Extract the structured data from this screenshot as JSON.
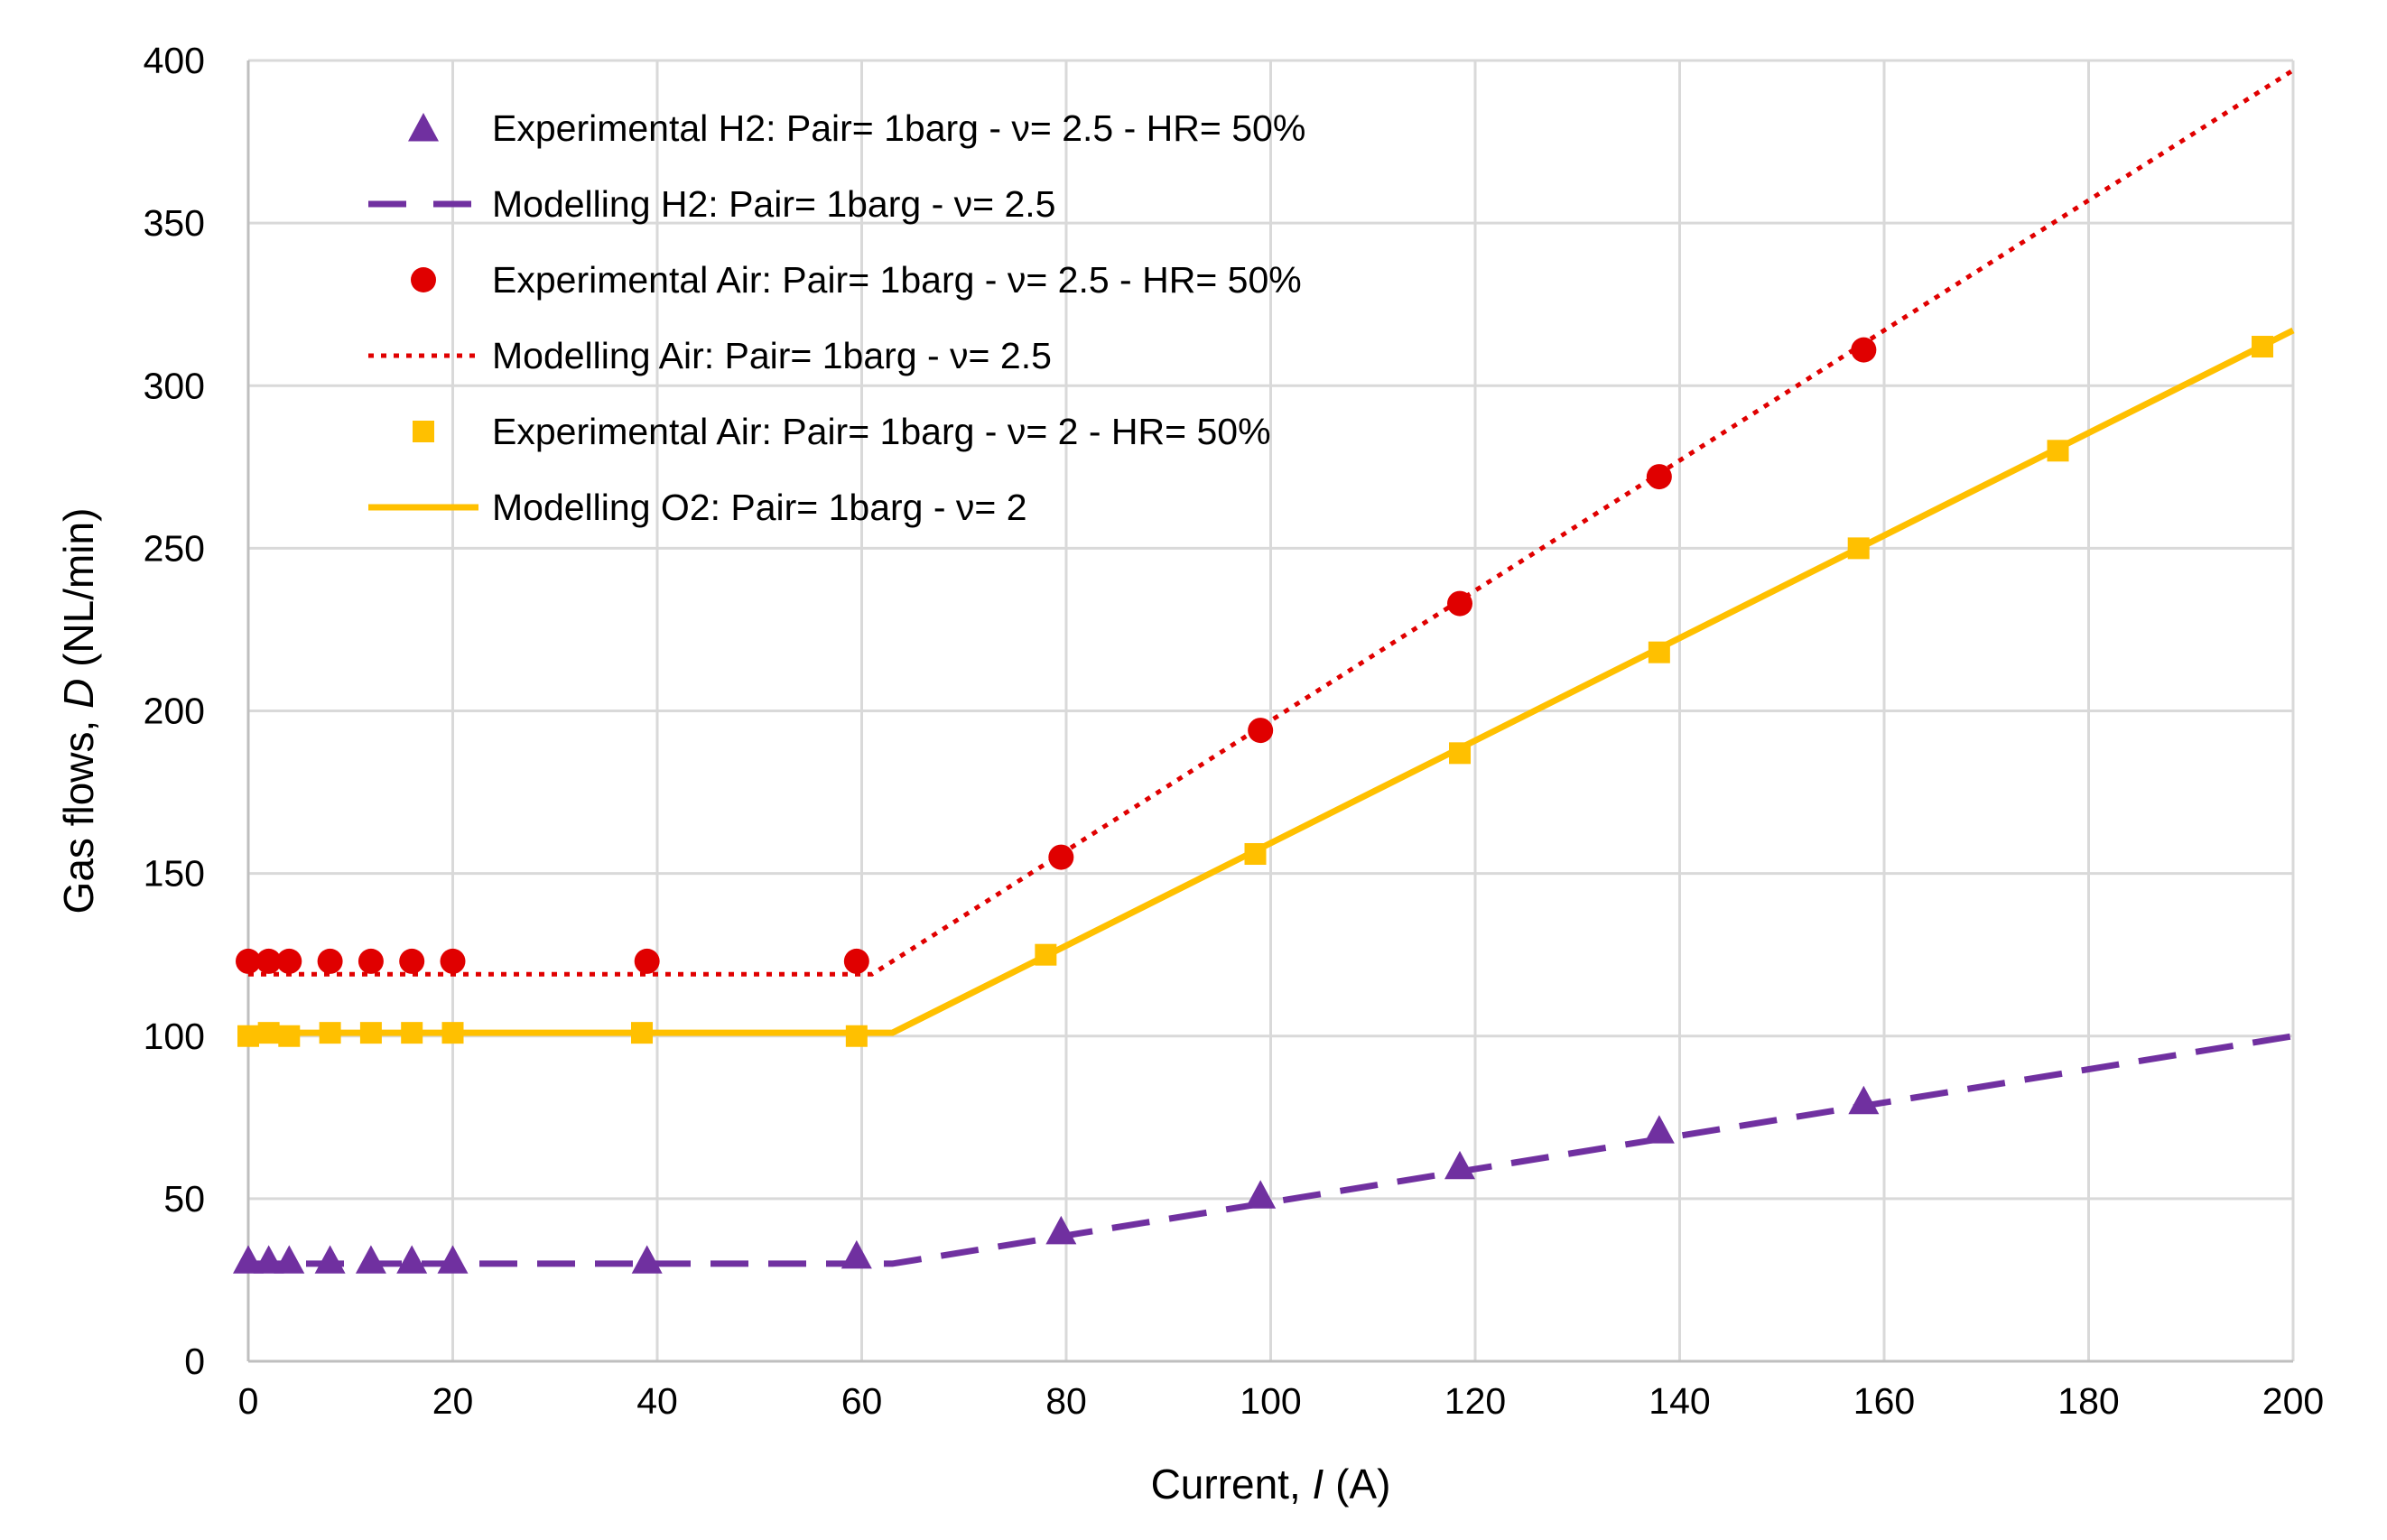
{
  "chart_data": {
    "type": "scatter",
    "title": "",
    "xlabel": {
      "prefix": "Current, ",
      "var": "I",
      "suffix": " (A)"
    },
    "ylabel": {
      "prefix": "Gas flows, ",
      "var": "D",
      "suffix": " (NL/min)"
    },
    "xlim": [
      0,
      200
    ],
    "ylim": [
      0,
      400
    ],
    "xticks": [
      0,
      20,
      40,
      60,
      80,
      100,
      120,
      140,
      160,
      180,
      200
    ],
    "yticks": [
      0,
      50,
      100,
      150,
      200,
      250,
      300,
      350,
      400
    ],
    "grid": true,
    "legend_position": "top-left",
    "series": [
      {
        "name": "Experimental H2: Pair= 1barg - ν= 2.5 - HR= 50%",
        "kind": "markers",
        "marker": "triangle",
        "color": "#7030A0",
        "x": [
          0,
          2,
          4,
          8,
          12,
          16,
          20,
          39,
          59.5,
          79.5,
          99,
          118.5,
          138,
          158
        ],
        "y": [
          31,
          31,
          31,
          31,
          31,
          31,
          31,
          31,
          32.5,
          40,
          51,
          60,
          71,
          80
        ]
      },
      {
        "name": "Modelling H2: Pair= 1barg - ν= 2.5",
        "kind": "line",
        "dash": "dashed",
        "color": "#7030A0",
        "x": [
          0,
          63,
          200
        ],
        "y": [
          30,
          30,
          100
        ]
      },
      {
        "name": "Experimental Air: Pair= 1barg - ν= 2.5 - HR= 50%",
        "kind": "markers",
        "marker": "circle",
        "color": "#E00000",
        "x": [
          0,
          2,
          4,
          8,
          12,
          16,
          20,
          39,
          59.5,
          79.5,
          99,
          118.5,
          138,
          158
        ],
        "y": [
          123,
          123,
          123,
          123,
          123,
          123,
          123,
          123,
          123,
          155,
          194,
          233,
          272,
          311
        ]
      },
      {
        "name": "Modelling Air: Pair= 1barg - ν= 2.5",
        "kind": "line",
        "dash": "dotted",
        "color": "#E00000",
        "x": [
          0,
          61,
          200
        ],
        "y": [
          119,
          119,
          397
        ]
      },
      {
        "name": "Experimental Air: Pair= 1barg - ν= 2 - HR= 50%",
        "kind": "markers",
        "marker": "square",
        "color": "#FFC000",
        "x": [
          0,
          2,
          4,
          8,
          12,
          16,
          20,
          38.5,
          59.5,
          78,
          98.5,
          118.5,
          138,
          157.5,
          177,
          197
        ],
        "y": [
          100,
          101,
          100,
          101,
          101,
          101,
          101,
          101,
          100,
          125,
          156,
          187,
          218,
          250,
          280,
          312
        ]
      },
      {
        "name": "Modelling O2: Pair= 1barg - ν= 2",
        "kind": "line",
        "dash": "solid",
        "color": "#FFC000",
        "x": [
          0,
          63,
          200
        ],
        "y": [
          101,
          101,
          317
        ]
      }
    ]
  }
}
